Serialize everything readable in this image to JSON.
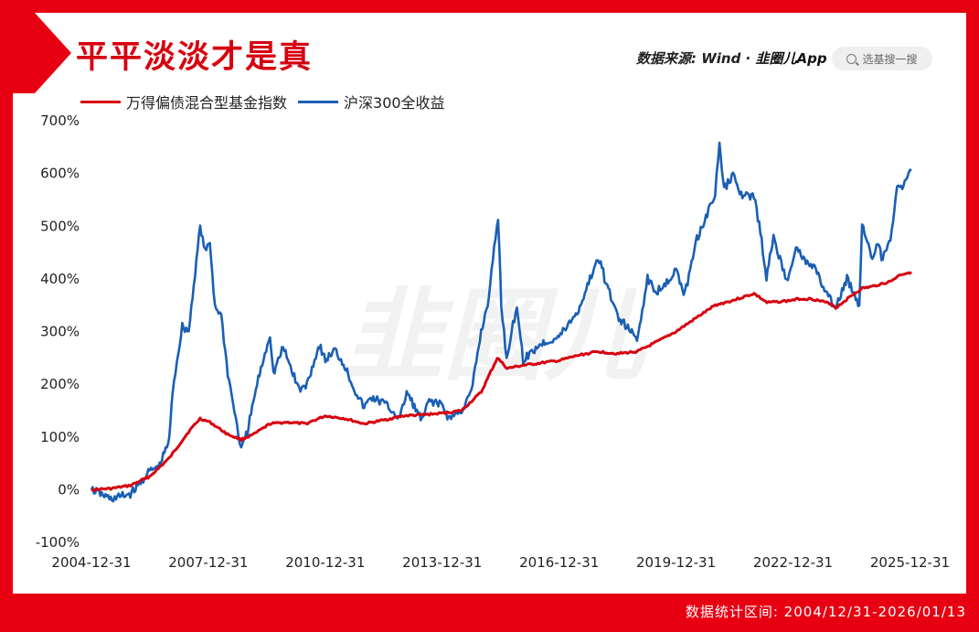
{
  "title": "平平淡淡才是真",
  "source_text": "数据来源: Wind · ",
  "brand_text": "韭圈儿App",
  "search_placeholder": "选基搜一搜",
  "footer": "数据统计区间: 2004/12/31-2026/01/13",
  "watermark": "韭圈儿",
  "colors": {
    "frame": "#e60012",
    "bond_series": "#d7000f",
    "hs300_series": "#1a5fb4"
  },
  "chart_data": {
    "type": "line",
    "y_unit": "%",
    "ylim": [
      -100,
      700
    ],
    "yticks": [
      -100,
      0,
      100,
      200,
      300,
      400,
      500,
      600,
      700
    ],
    "ytick_labels": [
      "-100%",
      "0%",
      "100%",
      "200%",
      "300%",
      "400%",
      "500%",
      "600%",
      "700%"
    ],
    "xlim": [
      "2004-12-31",
      "2026-01-13"
    ],
    "xticks": [
      "2004-12-31",
      "2007-12-31",
      "2010-12-31",
      "2013-12-31",
      "2016-12-31",
      "2019-12-31",
      "2022-12-31",
      "2025-12-31"
    ],
    "grid": false,
    "legend_position": "top-left",
    "series": [
      {
        "name": "万得偏债混合型基金指数",
        "color": "#d7000f",
        "points": [
          [
            "2004-12-31",
            0
          ],
          [
            "2005-06-30",
            2
          ],
          [
            "2006-01-01",
            8
          ],
          [
            "2006-06-30",
            25
          ],
          [
            "2007-01-01",
            60
          ],
          [
            "2007-06-30",
            110
          ],
          [
            "2007-10-15",
            135
          ],
          [
            "2008-01-15",
            128
          ],
          [
            "2008-06-30",
            105
          ],
          [
            "2008-11-01",
            95
          ],
          [
            "2009-03-01",
            105
          ],
          [
            "2009-08-01",
            125
          ],
          [
            "2010-01-01",
            128
          ],
          [
            "2010-07-01",
            125
          ],
          [
            "2011-01-01",
            140
          ],
          [
            "2011-06-30",
            135
          ],
          [
            "2012-01-01",
            125
          ],
          [
            "2012-06-30",
            132
          ],
          [
            "2013-01-01",
            140
          ],
          [
            "2013-06-30",
            142
          ],
          [
            "2014-01-01",
            145
          ],
          [
            "2014-06-30",
            150
          ],
          [
            "2014-12-31",
            185
          ],
          [
            "2015-06-01",
            250
          ],
          [
            "2015-09-01",
            230
          ],
          [
            "2016-01-01",
            235
          ],
          [
            "2016-06-30",
            240
          ],
          [
            "2017-01-01",
            245
          ],
          [
            "2017-06-30",
            255
          ],
          [
            "2018-01-01",
            262
          ],
          [
            "2018-06-30",
            258
          ],
          [
            "2019-01-01",
            262
          ],
          [
            "2019-06-30",
            280
          ],
          [
            "2020-01-01",
            300
          ],
          [
            "2020-06-30",
            325
          ],
          [
            "2021-01-01",
            350
          ],
          [
            "2021-06-30",
            360
          ],
          [
            "2021-12-31",
            372
          ],
          [
            "2022-05-01",
            355
          ],
          [
            "2022-10-31",
            358
          ],
          [
            "2023-03-01",
            362
          ],
          [
            "2023-06-30",
            362
          ],
          [
            "2023-12-31",
            352
          ],
          [
            "2024-02-05",
            345
          ],
          [
            "2024-06-30",
            368
          ],
          [
            "2024-10-08",
            382
          ],
          [
            "2025-01-01",
            385
          ],
          [
            "2025-06-30",
            395
          ],
          [
            "2025-10-01",
            408
          ],
          [
            "2026-01-13",
            413
          ]
        ]
      },
      {
        "name": "沪深300全收益",
        "color": "#1a5fb4",
        "points": [
          [
            "2004-12-31",
            0
          ],
          [
            "2005-03-01",
            -5
          ],
          [
            "2005-06-30",
            -18
          ],
          [
            "2005-12-31",
            -8
          ],
          [
            "2006-03-01",
            5
          ],
          [
            "2006-06-30",
            35
          ],
          [
            "2006-10-01",
            45
          ],
          [
            "2006-12-31",
            95
          ],
          [
            "2007-02-01",
            190
          ],
          [
            "2007-05-01",
            310
          ],
          [
            "2007-07-01",
            300
          ],
          [
            "2007-10-16",
            500
          ],
          [
            "2007-12-01",
            450
          ],
          [
            "2008-01-15",
            470
          ],
          [
            "2008-03-01",
            350
          ],
          [
            "2008-05-01",
            330
          ],
          [
            "2008-07-01",
            220
          ],
          [
            "2008-09-01",
            150
          ],
          [
            "2008-11-04",
            75
          ],
          [
            "2009-01-01",
            110
          ],
          [
            "2009-04-01",
            200
          ],
          [
            "2009-08-01",
            295
          ],
          [
            "2009-09-01",
            220
          ],
          [
            "2009-12-01",
            270
          ],
          [
            "2010-05-01",
            190
          ],
          [
            "2010-07-01",
            195
          ],
          [
            "2010-11-08",
            275
          ],
          [
            "2011-01-01",
            245
          ],
          [
            "2011-04-01",
            265
          ],
          [
            "2011-07-01",
            235
          ],
          [
            "2011-10-01",
            190
          ],
          [
            "2011-12-31",
            155
          ],
          [
            "2012-03-01",
            175
          ],
          [
            "2012-06-30",
            165
          ],
          [
            "2012-11-30",
            135
          ],
          [
            "2013-02-01",
            185
          ],
          [
            "2013-06-25",
            130
          ],
          [
            "2013-09-01",
            170
          ],
          [
            "2013-12-31",
            160
          ],
          [
            "2014-03-01",
            135
          ],
          [
            "2014-07-01",
            150
          ],
          [
            "2014-10-01",
            185
          ],
          [
            "2014-12-31",
            300
          ],
          [
            "2015-03-01",
            350
          ],
          [
            "2015-06-08",
            518
          ],
          [
            "2015-07-08",
            350
          ],
          [
            "2015-08-26",
            250
          ],
          [
            "2015-12-01",
            350
          ],
          [
            "2016-01-28",
            245
          ],
          [
            "2016-06-30",
            275
          ],
          [
            "2016-12-31",
            290
          ],
          [
            "2017-06-30",
            340
          ],
          [
            "2017-11-22",
            420
          ],
          [
            "2018-01-24",
            440
          ],
          [
            "2018-03-01",
            400
          ],
          [
            "2018-06-30",
            330
          ],
          [
            "2018-12-31",
            285
          ],
          [
            "2019-04-08",
            400
          ],
          [
            "2019-06-30",
            375
          ],
          [
            "2019-12-31",
            415
          ],
          [
            "2020-03-23",
            370
          ],
          [
            "2020-07-01",
            470
          ],
          [
            "2020-12-31",
            560
          ],
          [
            "2021-02-10",
            655
          ],
          [
            "2021-03-25",
            570
          ],
          [
            "2021-06-30",
            600
          ],
          [
            "2021-09-01",
            560
          ],
          [
            "2021-12-31",
            555
          ],
          [
            "2022-03-01",
            490
          ],
          [
            "2022-04-26",
            400
          ],
          [
            "2022-07-01",
            480
          ],
          [
            "2022-10-31",
            395
          ],
          [
            "2023-01-28",
            460
          ],
          [
            "2023-05-01",
            430
          ],
          [
            "2023-08-01",
            420
          ],
          [
            "2023-10-23",
            375
          ],
          [
            "2024-02-05",
            345
          ],
          [
            "2024-05-20",
            400
          ],
          [
            "2024-09-13",
            350
          ],
          [
            "2024-10-08",
            505
          ],
          [
            "2025-01-13",
            440
          ],
          [
            "2025-03-18",
            470
          ],
          [
            "2025-04-08",
            430
          ],
          [
            "2025-07-01",
            480
          ],
          [
            "2025-09-01",
            570
          ],
          [
            "2025-11-01",
            580
          ],
          [
            "2026-01-13",
            605
          ]
        ]
      }
    ]
  }
}
